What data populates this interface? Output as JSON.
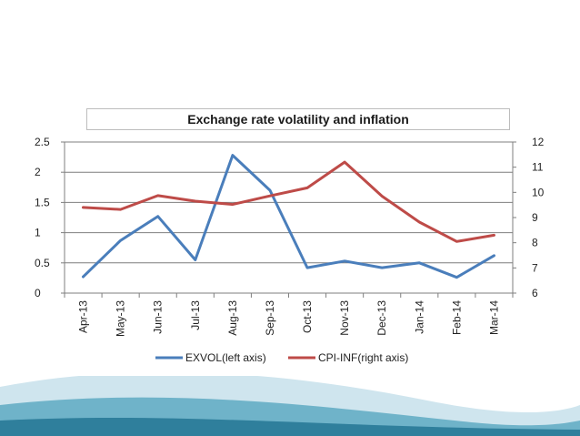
{
  "colors": {
    "wave_dark": "#2f7f9c",
    "wave_mid": "#6fb3c9",
    "wave_light": "#cfe5ee",
    "series_exvol": "#4a7ebb",
    "series_cpi": "#be4b48",
    "grid": "#7f7f7f"
  },
  "chart_data": {
    "type": "line",
    "title": "Exchange rate volatility and inflation",
    "categories": [
      "Apr-13",
      "May-13",
      "Jun-13",
      "Jul-13",
      "Aug-13",
      "Sep-13",
      "Oct-13",
      "Nov-13",
      "Dec-13",
      "Jan-14",
      "Feb-14",
      "Mar-14"
    ],
    "y_left": {
      "min": 0,
      "max": 2.5,
      "ticks": [
        "0",
        "0.5",
        "1",
        "1.5",
        "2",
        "2.5"
      ]
    },
    "y_right": {
      "min": 6,
      "max": 12,
      "ticks": [
        "6",
        "7",
        "8",
        "9",
        "10",
        "11",
        "12"
      ]
    },
    "grid": true,
    "legend_position": "bottom",
    "series": [
      {
        "name": "EXVOL(left axis)",
        "axis": "left",
        "values": [
          0.27,
          0.87,
          1.27,
          0.55,
          2.28,
          1.7,
          0.42,
          0.53,
          0.42,
          0.5,
          0.26,
          0.62
        ]
      },
      {
        "name": "CPI-INF(right axis)",
        "axis": "right",
        "values": [
          9.4,
          9.32,
          9.87,
          9.65,
          9.52,
          9.86,
          10.18,
          11.2,
          9.85,
          8.82,
          8.05,
          8.3
        ]
      }
    ]
  }
}
